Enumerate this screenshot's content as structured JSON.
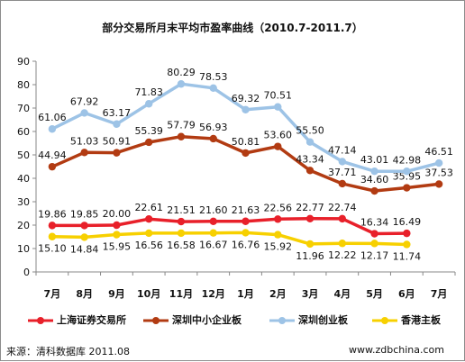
{
  "chart_data": {
    "type": "line",
    "title": "部分交易所月末平均市盈率曲线（2010.7-2011.7）",
    "categories": [
      "7月",
      "8月",
      "9月",
      "10月",
      "11月",
      "12月",
      "1月",
      "2月",
      "3月",
      "4月",
      "5月",
      "6月",
      "7月"
    ],
    "ylim": [
      0,
      90
    ],
    "yticks": [
      0,
      10,
      20,
      30,
      40,
      50,
      60,
      70,
      80,
      90
    ],
    "grid": false,
    "legend": "bottom",
    "series": [
      {
        "name": "上海证券交易所",
        "color": "#e8202a",
        "values": [
          19.86,
          19.85,
          20.0,
          22.61,
          21.51,
          21.6,
          21.63,
          22.56,
          22.77,
          22.74,
          16.34,
          16.49,
          null
        ],
        "labels": [
          "19.86",
          "19.85",
          "20.00",
          "22.61",
          "21.51",
          "21.60",
          "21.63",
          "22.56",
          "22.77",
          "22.74",
          "16.34",
          "16.49",
          ""
        ]
      },
      {
        "name": "深圳中小企业板",
        "color": "#b23b12",
        "values": [
          44.94,
          51.03,
          50.91,
          55.39,
          57.79,
          56.93,
          50.81,
          53.6,
          43.34,
          37.71,
          34.6,
          35.95,
          37.53
        ],
        "labels": [
          "44.94",
          "51.03",
          "50.91",
          "55.39",
          "57.79",
          "56.93",
          "50.81",
          "53.60",
          "43.34",
          "37.71",
          "34.60",
          "35.95",
          "37.53"
        ]
      },
      {
        "name": "深圳创业板",
        "color": "#9dc3e6",
        "values": [
          61.06,
          67.92,
          63.17,
          71.83,
          80.29,
          78.53,
          69.32,
          70.51,
          55.5,
          47.14,
          43.01,
          42.98,
          46.51
        ],
        "labels": [
          "61.06",
          "67.92",
          "63.17",
          "71.83",
          "80.29",
          "78.53",
          "69.32",
          "70.51",
          "55.50",
          "47.14",
          "43.01",
          "42.98",
          "46.51"
        ]
      },
      {
        "name": "香港主板",
        "color": "#f7d000",
        "values": [
          15.1,
          14.84,
          15.95,
          16.56,
          16.58,
          16.67,
          16.76,
          15.92,
          11.96,
          12.22,
          12.17,
          11.74,
          null
        ],
        "labels": [
          "15.10",
          "14.84",
          "15.95",
          "16.56",
          "16.58",
          "16.67",
          "16.76",
          "15.92",
          "11.96",
          "12.22",
          "12.17",
          "11.74",
          ""
        ]
      }
    ]
  },
  "footer": {
    "source": "来源：清科数据库 2011.08",
    "site": "www.zdbchina.com"
  }
}
